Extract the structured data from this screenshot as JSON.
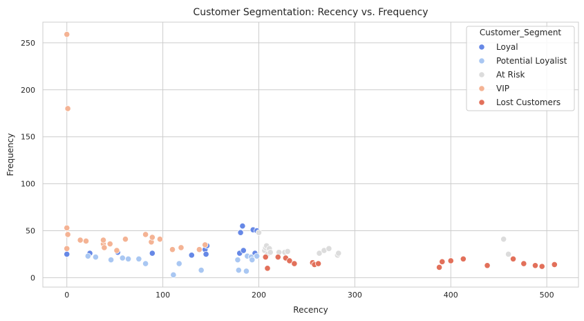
{
  "chart_data": {
    "type": "scatter",
    "title": "Customer Segmentation: Recency vs. Frequency",
    "xlabel": "Recency",
    "ylabel": "Frequency",
    "xlim": [
      -25,
      533
    ],
    "ylim": [
      -10,
      272
    ],
    "xticks": [
      0,
      100,
      200,
      300,
      400,
      500
    ],
    "yticks": [
      0,
      50,
      100,
      150,
      200,
      250
    ],
    "grid": true,
    "legend": {
      "title": "Customer_Segment",
      "position": "top-right"
    },
    "series": [
      {
        "name": "Loyal",
        "color": "#6688e6",
        "points": [
          [
            0,
            25
          ],
          [
            24,
            26
          ],
          [
            53,
            27
          ],
          [
            89,
            26
          ],
          [
            130,
            24
          ],
          [
            144,
            30
          ],
          [
            145,
            25
          ],
          [
            146,
            34
          ],
          [
            180,
            26
          ],
          [
            181,
            48
          ],
          [
            183,
            55
          ],
          [
            184,
            29
          ],
          [
            194,
            51
          ],
          [
            195,
            23
          ],
          [
            196,
            26
          ],
          [
            198,
            50
          ]
        ]
      },
      {
        "name": "Potential Loyalist",
        "color": "#a9c7f2",
        "points": [
          [
            22,
            23
          ],
          [
            30,
            22
          ],
          [
            46,
            19
          ],
          [
            58,
            21
          ],
          [
            64,
            20
          ],
          [
            75,
            20
          ],
          [
            82,
            15
          ],
          [
            111,
            3
          ],
          [
            117,
            15
          ],
          [
            140,
            8
          ],
          [
            178,
            19
          ],
          [
            179,
            8
          ],
          [
            187,
            7
          ],
          [
            188,
            23
          ],
          [
            192,
            22
          ],
          [
            193,
            19
          ],
          [
            198,
            23
          ]
        ]
      },
      {
        "name": "At Risk",
        "color": "#dcdcdc",
        "points": [
          [
            200,
            48
          ],
          [
            206,
            29
          ],
          [
            207,
            32
          ],
          [
            208,
            34
          ],
          [
            209,
            25
          ],
          [
            211,
            31
          ],
          [
            212,
            27
          ],
          [
            221,
            27
          ],
          [
            227,
            27
          ],
          [
            230,
            28
          ],
          [
            263,
            26
          ],
          [
            268,
            29
          ],
          [
            273,
            31
          ],
          [
            282,
            24
          ],
          [
            283,
            26
          ],
          [
            455,
            41
          ],
          [
            460,
            25
          ]
        ]
      },
      {
        "name": "VIP",
        "color": "#f4b394",
        "points": [
          [
            0,
            259
          ],
          [
            1,
            180
          ],
          [
            0,
            53
          ],
          [
            1,
            46
          ],
          [
            0,
            31
          ],
          [
            14,
            40
          ],
          [
            20,
            39
          ],
          [
            38,
            36
          ],
          [
            38,
            40
          ],
          [
            39,
            32
          ],
          [
            45,
            36
          ],
          [
            52,
            29
          ],
          [
            61,
            41
          ],
          [
            82,
            46
          ],
          [
            88,
            38
          ],
          [
            89,
            43
          ],
          [
            97,
            41
          ],
          [
            110,
            30
          ],
          [
            119,
            32
          ],
          [
            138,
            30
          ],
          [
            144,
            35
          ]
        ]
      },
      {
        "name": "Lost Customers",
        "color": "#e2705a",
        "points": [
          [
            207,
            22
          ],
          [
            209,
            10
          ],
          [
            220,
            22
          ],
          [
            228,
            21
          ],
          [
            232,
            18
          ],
          [
            237,
            15
          ],
          [
            256,
            16
          ],
          [
            258,
            14
          ],
          [
            262,
            15
          ],
          [
            388,
            11
          ],
          [
            391,
            17
          ],
          [
            400,
            18
          ],
          [
            413,
            20
          ],
          [
            438,
            13
          ],
          [
            465,
            20
          ],
          [
            476,
            15
          ],
          [
            488,
            13
          ],
          [
            495,
            12
          ],
          [
            508,
            14
          ]
        ]
      }
    ]
  }
}
